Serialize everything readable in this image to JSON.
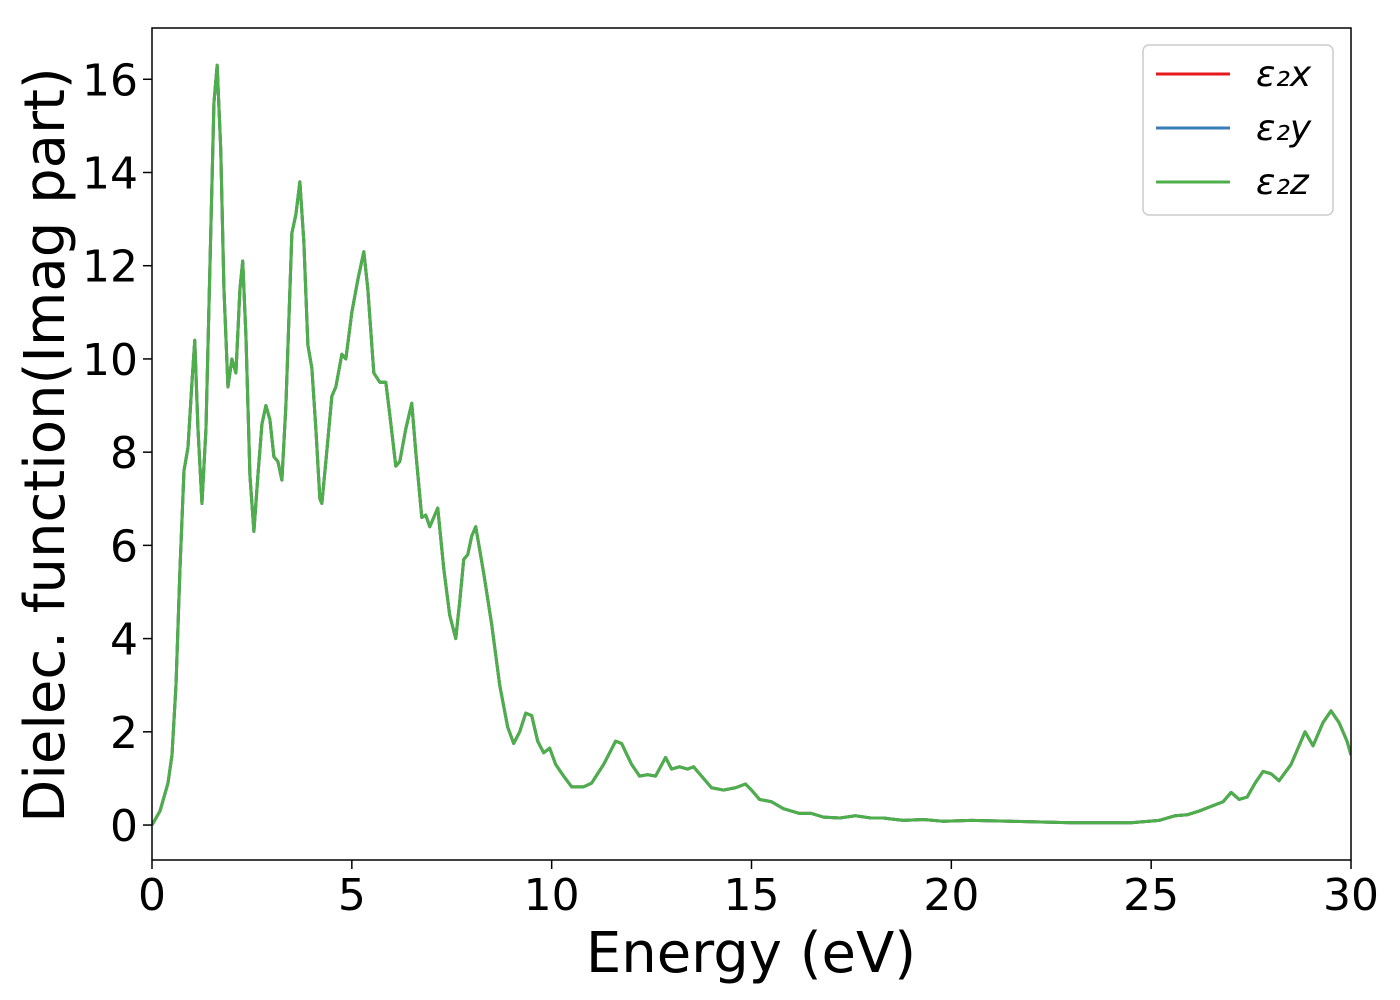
{
  "chart_data": {
    "type": "line",
    "xlabel": "Energy (eV)",
    "ylabel": "Dielec. function(Imag part)",
    "xlim": [
      0,
      30
    ],
    "ylim": [
      -0.75,
      17.1
    ],
    "xticks": [
      0,
      5,
      10,
      15,
      20,
      25,
      30
    ],
    "yticks": [
      0,
      2,
      4,
      6,
      8,
      10,
      12,
      14,
      16
    ],
    "legend": "upper right",
    "x": [
      0,
      0.2,
      0.4,
      0.5,
      0.6,
      0.7,
      0.8,
      0.9,
      1.0,
      1.07,
      1.15,
      1.25,
      1.35,
      1.45,
      1.55,
      1.63,
      1.72,
      1.8,
      1.9,
      2.0,
      2.1,
      2.2,
      2.27,
      2.35,
      2.45,
      2.55,
      2.65,
      2.75,
      2.85,
      2.95,
      3.05,
      3.15,
      3.25,
      3.35,
      3.5,
      3.6,
      3.7,
      3.8,
      3.9,
      4.0,
      4.1,
      4.2,
      4.25,
      4.35,
      4.5,
      4.6,
      4.75,
      4.85,
      5.0,
      5.15,
      5.3,
      5.4,
      5.55,
      5.7,
      5.85,
      5.95,
      6.1,
      6.2,
      6.35,
      6.5,
      6.6,
      6.75,
      6.85,
      6.95,
      7.05,
      7.15,
      7.3,
      7.45,
      7.6,
      7.7,
      7.8,
      7.9,
      8.0,
      8.1,
      8.2,
      8.3,
      8.5,
      8.7,
      8.9,
      9.05,
      9.2,
      9.35,
      9.5,
      9.65,
      9.8,
      9.95,
      10.1,
      10.3,
      10.5,
      10.8,
      11.0,
      11.3,
      11.6,
      11.75,
      12.0,
      12.2,
      12.4,
      12.6,
      12.85,
      13.0,
      13.2,
      13.4,
      13.55,
      13.8,
      14.0,
      14.3,
      14.6,
      14.85,
      15.0,
      15.2,
      15.5,
      15.8,
      16.2,
      16.5,
      16.8,
      17.2,
      17.6,
      18.0,
      18.3,
      18.8,
      19.3,
      19.8,
      20.5,
      21.5,
      23,
      24.5,
      25.2,
      25.6,
      25.9,
      26.2,
      26.5,
      26.8,
      27.0,
      27.2,
      27.4,
      27.6,
      27.8,
      28.0,
      28.2,
      28.5,
      28.85,
      29.05,
      29.3,
      29.5,
      29.7,
      29.9,
      30
    ],
    "series": [
      {
        "name": "ε₂x",
        "color": "#e41a1c",
        "values": [
          0.0,
          0.3,
          0.9,
          1.5,
          3.0,
          5.5,
          7.6,
          8.1,
          9.5,
          10.4,
          8.5,
          6.9,
          8.5,
          12,
          15.5,
          16.3,
          14.5,
          11.5,
          9.4,
          10.0,
          9.7,
          11.5,
          12.1,
          10.5,
          7.5,
          6.3,
          7.5,
          8.6,
          9.0,
          8.7,
          7.9,
          7.8,
          7.4,
          9.0,
          12.7,
          13.1,
          13.8,
          12.5,
          10.3,
          9.8,
          8.5,
          7.0,
          6.9,
          7.8,
          9.2,
          9.4,
          10.1,
          10.0,
          11.0,
          11.7,
          12.3,
          11.5,
          9.7,
          9.5,
          9.5,
          8.8,
          7.7,
          7.8,
          8.5,
          9.05,
          8.0,
          6.6,
          6.65,
          6.4,
          6.6,
          6.8,
          5.5,
          4.5,
          4.0,
          4.8,
          5.7,
          5.8,
          6.2,
          6.4,
          5.9,
          5.4,
          4.3,
          3.0,
          2.1,
          1.75,
          2.0,
          2.4,
          2.35,
          1.8,
          1.55,
          1.65,
          1.3,
          1.05,
          0.82,
          0.82,
          0.9,
          1.3,
          1.8,
          1.75,
          1.3,
          1.05,
          1.08,
          1.05,
          1.45,
          1.2,
          1.25,
          1.2,
          1.25,
          1.0,
          0.8,
          0.75,
          0.8,
          0.88,
          0.75,
          0.55,
          0.5,
          0.35,
          0.25,
          0.25,
          0.17,
          0.15,
          0.2,
          0.15,
          0.15,
          0.1,
          0.12,
          0.08,
          0.1,
          0.08,
          0.05,
          0.05,
          0.1,
          0.2,
          0.22,
          0.3,
          0.4,
          0.5,
          0.7,
          0.55,
          0.6,
          0.9,
          1.15,
          1.1,
          0.95,
          1.3,
          2.0,
          1.7,
          2.2,
          2.45,
          2.2,
          1.8,
          1.5
        ]
      },
      {
        "name": "ε₂y",
        "color": "#377eb8",
        "values": [
          0.0,
          0.3,
          0.9,
          1.5,
          3.0,
          5.5,
          7.6,
          8.1,
          9.5,
          10.4,
          8.5,
          6.9,
          8.5,
          12,
          15.5,
          16.3,
          14.5,
          11.5,
          9.4,
          10.0,
          9.7,
          11.5,
          12.1,
          10.5,
          7.5,
          6.3,
          7.5,
          8.6,
          9.0,
          8.7,
          7.9,
          7.8,
          7.4,
          9.0,
          12.7,
          13.1,
          13.8,
          12.5,
          10.3,
          9.8,
          8.5,
          7.0,
          6.9,
          7.8,
          9.2,
          9.4,
          10.1,
          10.0,
          11.0,
          11.7,
          12.3,
          11.5,
          9.7,
          9.5,
          9.5,
          8.8,
          7.7,
          7.8,
          8.5,
          9.05,
          8.0,
          6.6,
          6.65,
          6.4,
          6.6,
          6.8,
          5.5,
          4.5,
          4.0,
          4.8,
          5.7,
          5.8,
          6.2,
          6.4,
          5.9,
          5.4,
          4.3,
          3.0,
          2.1,
          1.75,
          2.0,
          2.4,
          2.35,
          1.8,
          1.55,
          1.65,
          1.3,
          1.05,
          0.82,
          0.82,
          0.9,
          1.3,
          1.8,
          1.75,
          1.3,
          1.05,
          1.08,
          1.05,
          1.45,
          1.2,
          1.25,
          1.2,
          1.25,
          1.0,
          0.8,
          0.75,
          0.8,
          0.88,
          0.75,
          0.55,
          0.5,
          0.35,
          0.25,
          0.25,
          0.17,
          0.15,
          0.2,
          0.15,
          0.15,
          0.1,
          0.12,
          0.08,
          0.1,
          0.08,
          0.05,
          0.05,
          0.1,
          0.2,
          0.22,
          0.3,
          0.4,
          0.5,
          0.7,
          0.55,
          0.6,
          0.9,
          1.15,
          1.1,
          0.95,
          1.3,
          2.0,
          1.7,
          2.2,
          2.45,
          2.2,
          1.8,
          1.5
        ]
      },
      {
        "name": "ε₂z",
        "color": "#4daf4a",
        "values": [
          0.0,
          0.3,
          0.9,
          1.5,
          3.0,
          5.5,
          7.6,
          8.1,
          9.5,
          10.4,
          8.5,
          6.9,
          8.5,
          12,
          15.5,
          16.3,
          14.5,
          11.5,
          9.4,
          10.0,
          9.7,
          11.5,
          12.1,
          10.5,
          7.5,
          6.3,
          7.5,
          8.6,
          9.0,
          8.7,
          7.9,
          7.8,
          7.4,
          9.0,
          12.7,
          13.1,
          13.8,
          12.5,
          10.3,
          9.8,
          8.5,
          7.0,
          6.9,
          7.8,
          9.2,
          9.4,
          10.1,
          10.0,
          11.0,
          11.7,
          12.3,
          11.5,
          9.7,
          9.5,
          9.5,
          8.8,
          7.7,
          7.8,
          8.5,
          9.05,
          8.0,
          6.6,
          6.65,
          6.4,
          6.6,
          6.8,
          5.5,
          4.5,
          4.0,
          4.8,
          5.7,
          5.8,
          6.2,
          6.4,
          5.9,
          5.4,
          4.3,
          3.0,
          2.1,
          1.75,
          2.0,
          2.4,
          2.35,
          1.8,
          1.55,
          1.65,
          1.3,
          1.05,
          0.82,
          0.82,
          0.9,
          1.3,
          1.8,
          1.75,
          1.3,
          1.05,
          1.08,
          1.05,
          1.45,
          1.2,
          1.25,
          1.2,
          1.25,
          1.0,
          0.8,
          0.75,
          0.8,
          0.88,
          0.75,
          0.55,
          0.5,
          0.35,
          0.25,
          0.25,
          0.17,
          0.15,
          0.2,
          0.15,
          0.15,
          0.1,
          0.12,
          0.08,
          0.1,
          0.08,
          0.05,
          0.05,
          0.1,
          0.2,
          0.22,
          0.3,
          0.4,
          0.5,
          0.7,
          0.55,
          0.6,
          0.9,
          1.15,
          1.1,
          0.95,
          1.3,
          2.0,
          1.7,
          2.2,
          2.45,
          2.2,
          1.8,
          1.5
        ]
      }
    ]
  }
}
